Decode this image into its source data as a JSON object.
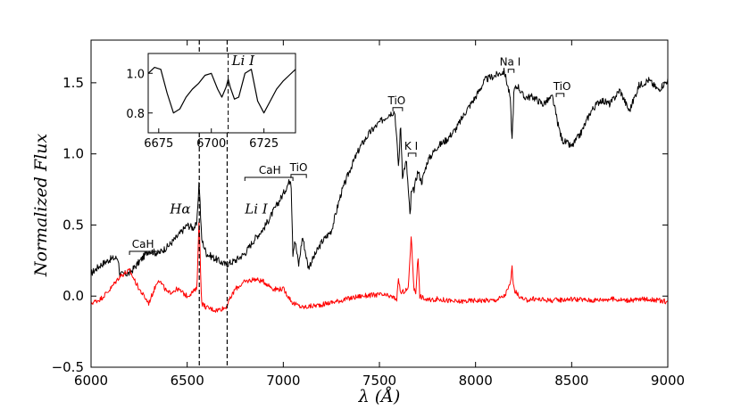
{
  "chart_data": {
    "type": "line",
    "xlabel": "λ (Å)",
    "ylabel": "Normalized Flux",
    "xlim": [
      6000,
      9000
    ],
    "ylim": [
      -0.5,
      1.8
    ],
    "xticks": [
      "6000",
      "6500",
      "7000",
      "7500",
      "8000",
      "8500",
      "9000"
    ],
    "yticks": [
      "−0.5",
      "0.0",
      "0.5",
      "1.0",
      "1.5"
    ],
    "series": [
      {
        "color": "#000000",
        "x": [
          6000,
          6050,
          6100,
          6140,
          6150,
          6200,
          6250,
          6300,
          6350,
          6400,
          6450,
          6500,
          6530,
          6550,
          6562,
          6575,
          6600,
          6650,
          6700,
          6750,
          6800,
          6850,
          6900,
          6950,
          7000,
          7040,
          7050,
          7060,
          7080,
          7100,
          7130,
          7200,
          7250,
          7300,
          7350,
          7400,
          7450,
          7500,
          7550,
          7580,
          7600,
          7610,
          7620,
          7640,
          7660,
          7665,
          7680,
          7700,
          7720,
          7750,
          7800,
          7850,
          7900,
          7950,
          8000,
          8050,
          8100,
          8150,
          8180,
          8190,
          8200,
          8220,
          8250,
          8300,
          8350,
          8400,
          8430,
          8450,
          8500,
          8550,
          8600,
          8650,
          8700,
          8750,
          8800,
          8850,
          8900,
          8950,
          9000
        ],
        "y": [
          0.16,
          0.22,
          0.26,
          0.27,
          0.15,
          0.16,
          0.24,
          0.32,
          0.3,
          0.35,
          0.42,
          0.5,
          0.48,
          0.5,
          0.82,
          0.4,
          0.3,
          0.26,
          0.22,
          0.25,
          0.3,
          0.4,
          0.48,
          0.6,
          0.72,
          0.83,
          0.3,
          0.4,
          0.22,
          0.42,
          0.2,
          0.38,
          0.46,
          0.72,
          0.9,
          1.05,
          1.15,
          1.22,
          1.28,
          1.3,
          0.9,
          1.22,
          0.85,
          0.95,
          0.55,
          0.72,
          0.75,
          0.88,
          0.8,
          0.95,
          1.05,
          1.1,
          1.18,
          1.3,
          1.4,
          1.52,
          1.55,
          1.58,
          1.4,
          1.1,
          1.45,
          1.48,
          1.4,
          1.4,
          1.35,
          1.4,
          1.2,
          1.1,
          1.05,
          1.15,
          1.3,
          1.38,
          1.35,
          1.45,
          1.3,
          1.48,
          1.52,
          1.45,
          1.52
        ]
      },
      {
        "color": "#ff0000",
        "x": [
          6000,
          6050,
          6100,
          6150,
          6200,
          6250,
          6300,
          6350,
          6400,
          6450,
          6500,
          6550,
          6562,
          6575,
          6600,
          6650,
          6700,
          6750,
          6800,
          6850,
          6900,
          6950,
          7000,
          7050,
          7100,
          7200,
          7300,
          7400,
          7500,
          7550,
          7590,
          7600,
          7610,
          7650,
          7665,
          7680,
          7690,
          7700,
          7710,
          7750,
          7800,
          7900,
          8000,
          8100,
          8150,
          8180,
          8190,
          8200,
          8250,
          8300,
          8400,
          8500,
          8600,
          8700,
          8800,
          8900,
          9000
        ],
        "y": [
          -0.05,
          -0.02,
          0.05,
          0.14,
          0.18,
          0.05,
          -0.05,
          0.12,
          0.02,
          0.05,
          0.0,
          0.05,
          0.55,
          -0.05,
          -0.08,
          -0.1,
          -0.08,
          0.05,
          0.1,
          0.12,
          0.1,
          0.05,
          0.05,
          -0.05,
          -0.08,
          -0.06,
          -0.03,
          0.0,
          0.01,
          0.0,
          -0.02,
          0.12,
          0.02,
          0.05,
          0.42,
          0.05,
          0.02,
          0.3,
          0.0,
          -0.03,
          -0.02,
          -0.04,
          -0.03,
          -0.03,
          0.0,
          0.08,
          0.2,
          0.04,
          -0.03,
          -0.02,
          -0.03,
          -0.02,
          -0.03,
          -0.02,
          -0.03,
          -0.02,
          -0.04
        ]
      }
    ],
    "vlines": [
      6563,
      6708
    ],
    "annotations": [
      {
        "text": "CaH",
        "x": 6270,
        "y": 0.34,
        "bar": [
          6200,
          6340
        ]
      },
      {
        "text": "CaH",
        "x": 6930,
        "y": 0.86,
        "bar": [
          6800,
          7050
        ]
      },
      {
        "text": "TiO",
        "x": 7080,
        "y": 0.88,
        "bar": [
          7040,
          7120
        ]
      },
      {
        "text": "TiO",
        "x": 7590,
        "y": 1.35,
        "bar": [
          7570,
          7620
        ]
      },
      {
        "text": "K I",
        "x": 7665,
        "y": 1.03,
        "bar": [
          7650,
          7690
        ]
      },
      {
        "text": "Na I",
        "x": 8180,
        "y": 1.62,
        "bar": [
          8170,
          8200
        ]
      },
      {
        "text": "TiO",
        "x": 8450,
        "y": 1.45,
        "bar": [
          8420,
          8460
        ]
      }
    ],
    "line_labels": [
      {
        "text": "Hα",
        "x": 6410,
        "y": 0.58
      },
      {
        "text": "Li I",
        "x": 6800,
        "y": 0.58
      }
    ],
    "inset": {
      "xlim": [
        6670,
        6740
      ],
      "ylim": [
        0.7,
        1.1
      ],
      "xticks": [
        "6675",
        "6700",
        "6725"
      ],
      "yticks": [
        "0.8",
        "1.0"
      ],
      "label": "Li I",
      "vline": 6708,
      "x": [
        6670,
        6673,
        6676,
        6679,
        6682,
        6685,
        6688,
        6691,
        6694,
        6697,
        6700,
        6703,
        6705,
        6707,
        6708,
        6709,
        6711,
        6713,
        6716,
        6719,
        6722,
        6725,
        6728,
        6731,
        6734,
        6737,
        6740
      ],
      "y": [
        1.0,
        1.03,
        1.02,
        0.9,
        0.8,
        0.82,
        0.88,
        0.92,
        0.95,
        0.99,
        1.0,
        0.92,
        0.88,
        0.93,
        0.97,
        0.93,
        0.87,
        0.88,
        1.0,
        1.02,
        0.86,
        0.8,
        0.86,
        0.92,
        0.96,
        0.99,
        1.02
      ]
    }
  }
}
